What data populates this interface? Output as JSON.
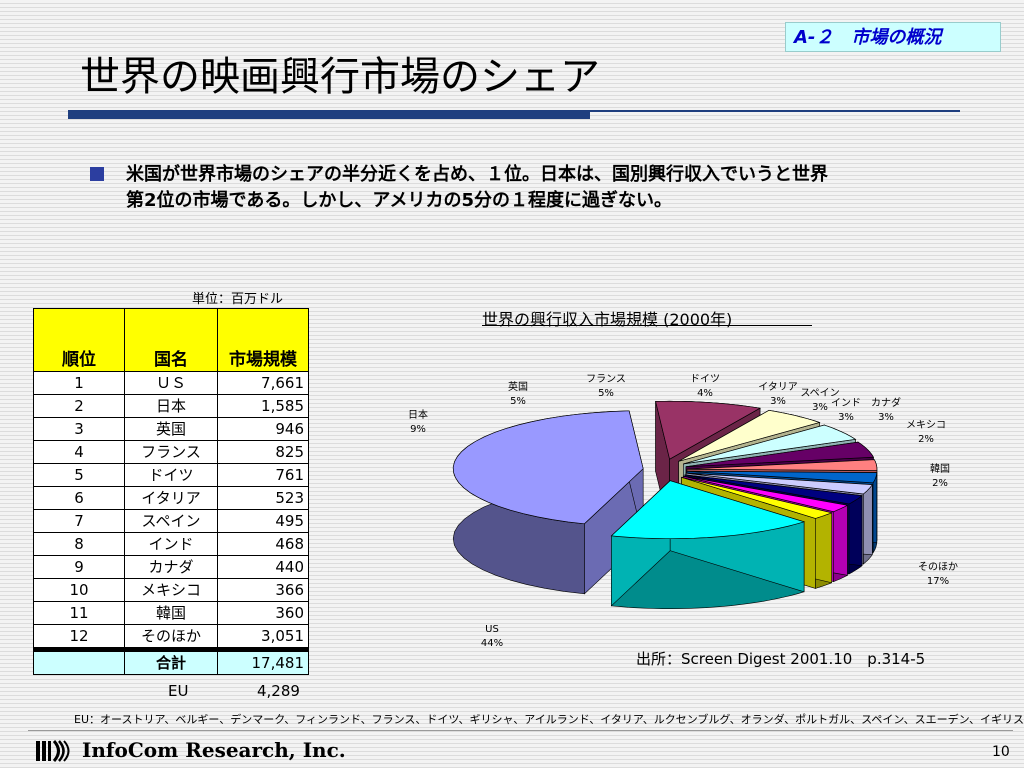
{
  "section_tag": "A-２　市場の概況",
  "title": "世界の映画興行市場のシェア",
  "lead": {
    "line1": "米国が世界市場のシェアの半分近くを占め、１位。日本は、国別興行収入でいうと世界",
    "line2": "第2位の市場である。しかし、アメリカの5分の１程度に過ぎない。"
  },
  "table": {
    "unit_label": "単位：百万ドル",
    "headers": [
      "順位",
      "国名",
      "市場規模"
    ],
    "rows": [
      [
        "1",
        "ＵＳ",
        "7,661"
      ],
      [
        "2",
        "日本",
        "1,585"
      ],
      [
        "3",
        "英国",
        "946"
      ],
      [
        "4",
        "フランス",
        "825"
      ],
      [
        "5",
        "ドイツ",
        "761"
      ],
      [
        "6",
        "イタリア",
        "523"
      ],
      [
        "7",
        "スペイン",
        "495"
      ],
      [
        "8",
        "インド",
        "468"
      ],
      [
        "9",
        "カナダ",
        "440"
      ],
      [
        "10",
        "メキシコ",
        "366"
      ],
      [
        "11",
        "韓国",
        "360"
      ],
      [
        "12",
        "そのほか",
        "3,051"
      ]
    ],
    "total_label": "合計",
    "total_value": "17,481",
    "eu_label": "EU",
    "eu_value": "4,289"
  },
  "chart_data": {
    "type": "pie",
    "title": "世界の興行収入市場規模 (2000年)",
    "slices": [
      {
        "name": "US",
        "percent_label": "44%",
        "value": 7661,
        "color": "#9999ff"
      },
      {
        "name": "日本",
        "percent_label": "9%",
        "value": 1585,
        "color": "#993366"
      },
      {
        "name": "英国",
        "percent_label": "5%",
        "value": 946,
        "color": "#ffffcc"
      },
      {
        "name": "フランス",
        "percent_label": "5%",
        "value": 825,
        "color": "#ccffff"
      },
      {
        "name": "ドイツ",
        "percent_label": "4%",
        "value": 761,
        "color": "#660066"
      },
      {
        "name": "イタリア",
        "percent_label": "3%",
        "value": 523,
        "color": "#ff8080"
      },
      {
        "name": "スペイン",
        "percent_label": "3%",
        "value": 495,
        "color": "#0066cc"
      },
      {
        "name": "インド",
        "percent_label": "3%",
        "value": 468,
        "color": "#ccccff"
      },
      {
        "name": "カナダ",
        "percent_label": "3%",
        "value": 440,
        "color": "#000080"
      },
      {
        "name": "メキシコ",
        "percent_label": "2%",
        "value": 366,
        "color": "#ff00ff"
      },
      {
        "name": "韓国",
        "percent_label": "2%",
        "value": 360,
        "color": "#ffff00"
      },
      {
        "name": "そのほか",
        "percent_label": "17%",
        "value": 3051,
        "color": "#00ffff"
      }
    ]
  },
  "source": "出所：Screen Digest 2001.10　p.314-5",
  "eu_note": "EU：オーストリア、ベルギー、デンマーク、フィンランド、フランス、ドイツ、ギリシャ、アイルランド、イタリア、ルクセンブルグ、オランダ、ポルトガル、スペイン、スエーデン、イギリス",
  "footer": {
    "company": "InfoCom Research, Inc.",
    "page_number": "10"
  }
}
